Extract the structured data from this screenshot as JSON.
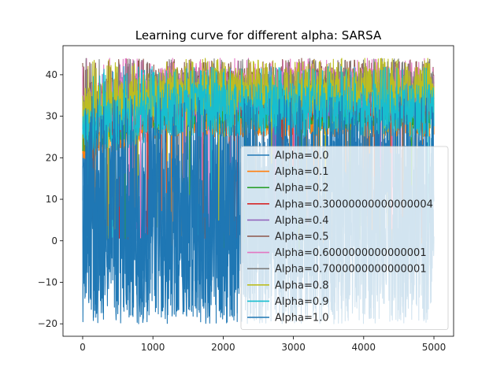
{
  "chart_data": {
    "type": "line",
    "title": "Learning curve for different alpha: SARSA",
    "xlabel": "",
    "ylabel": "",
    "xlim": [
      -280,
      5280
    ],
    "ylim": [
      -23,
      47
    ],
    "x_ticks": [
      0,
      1000,
      2000,
      3000,
      4000,
      5000
    ],
    "x_tick_labels": [
      "0",
      "1000",
      "2000",
      "3000",
      "4000",
      "5000"
    ],
    "y_ticks": [
      -20,
      -10,
      0,
      10,
      20,
      30,
      40
    ],
    "y_tick_labels": [
      "−20",
      "−10",
      "0",
      "10",
      "20",
      "30",
      "40"
    ],
    "episodes": 5000,
    "grid": false,
    "legend_position": "lower right",
    "series": [
      {
        "name": "Alpha=0.0",
        "color": "#1f77b4",
        "min": -20,
        "max": 35,
        "typical_range": [
          -20,
          27
        ]
      },
      {
        "name": "Alpha=0.1",
        "color": "#ff7f0e",
        "min": -2,
        "max": 35,
        "typical_range": [
          25,
          33
        ]
      },
      {
        "name": "Alpha=0.2",
        "color": "#2ca02c",
        "min": -2,
        "max": 37,
        "typical_range": [
          27,
          35
        ]
      },
      {
        "name": "Alpha=0.30000000000000004",
        "color": "#d62728",
        "min": 0,
        "max": 39,
        "typical_range": [
          29,
          37
        ]
      },
      {
        "name": "Alpha=0.4",
        "color": "#9467bd",
        "min": 0,
        "max": 41,
        "typical_range": [
          30,
          39
        ]
      },
      {
        "name": "Alpha=0.5",
        "color": "#8c564b",
        "min": 0,
        "max": 44,
        "typical_range": [
          32,
          42
        ]
      },
      {
        "name": "Alpha=0.6000000000000001",
        "color": "#e377c2",
        "min": 0,
        "max": 44,
        "typical_range": [
          32,
          42
        ]
      },
      {
        "name": "Alpha=0.7000000000000001",
        "color": "#7f7f7f",
        "min": 0,
        "max": 44,
        "typical_range": [
          31,
          41
        ]
      },
      {
        "name": "Alpha=0.8",
        "color": "#bcbd22",
        "min": 0,
        "max": 44,
        "typical_range": [
          30,
          42
        ]
      },
      {
        "name": "Alpha=0.9",
        "color": "#17becf",
        "min": -2,
        "max": 42,
        "typical_range": [
          25,
          38
        ]
      },
      {
        "name": "Alpha=1.0",
        "color": "#1f77b4",
        "min": -20,
        "max": 35,
        "typical_range": [
          -20,
          30
        ]
      }
    ]
  }
}
